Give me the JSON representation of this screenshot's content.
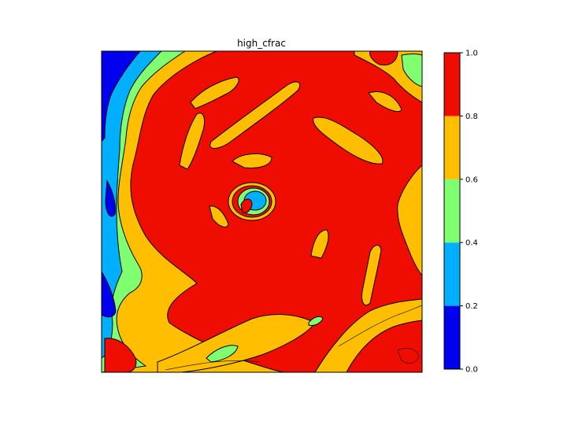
{
  "chart_data": {
    "type": "heatmap",
    "subtype": "filled-contour",
    "title": "high_cfrac",
    "colorbar": {
      "levels": [
        0.0,
        0.2,
        0.4,
        0.6,
        0.8,
        1.0
      ],
      "tick_labels": [
        "0.0",
        "0.2",
        "0.4",
        "0.6",
        "0.8",
        "1.0"
      ],
      "colors": [
        "#0000ee",
        "#00b0ff",
        "#80ff70",
        "#ffbf00",
        "#ef0c00"
      ],
      "placement": "right"
    },
    "dominant_level_band": [
      0.8,
      1.0
    ],
    "contour_line_color": "#000000",
    "axes_ticks": "none",
    "grid": false
  }
}
